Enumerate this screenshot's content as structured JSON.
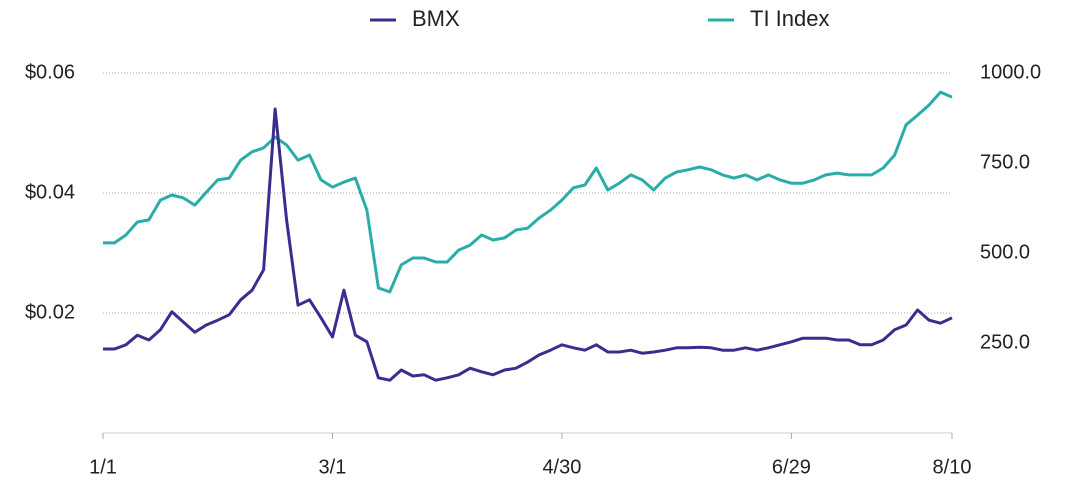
{
  "chart_data": {
    "type": "line",
    "categories": [
      "1/1",
      null,
      null,
      null,
      null,
      null,
      null,
      null,
      null,
      null,
      null,
      null,
      null,
      null,
      null,
      null,
      null,
      null,
      null,
      null,
      "3/1",
      null,
      null,
      null,
      null,
      null,
      null,
      null,
      null,
      null,
      null,
      null,
      null,
      null,
      null,
      null,
      null,
      null,
      null,
      null,
      "4/30",
      null,
      null,
      null,
      null,
      null,
      null,
      null,
      null,
      null,
      null,
      null,
      null,
      null,
      null,
      null,
      null,
      null,
      null,
      null,
      "6/29",
      null,
      null,
      null,
      null,
      null,
      null,
      null,
      null,
      null,
      null,
      null,
      null,
      null,
      "8/10"
    ],
    "series": [
      {
        "name": "BMX",
        "color": "#3b2d8f",
        "values": [
          0.014,
          0.014,
          0.0147,
          0.0163,
          0.0155,
          0.0172,
          0.0202,
          0.0185,
          0.0168,
          0.018,
          0.0188,
          0.0197,
          0.0222,
          0.0238,
          0.0272,
          0.054,
          0.0355,
          0.0213,
          0.0222,
          0.0192,
          0.016,
          0.0238,
          0.0163,
          0.0152,
          0.0092,
          0.0088,
          0.0105,
          0.0095,
          0.0097,
          0.0088,
          0.0092,
          0.0097,
          0.0108,
          0.0102,
          0.0097,
          0.0105,
          0.0108,
          0.0118,
          0.013,
          0.0138,
          0.0147,
          0.0142,
          0.0138,
          0.0147,
          0.0135,
          0.0135,
          0.0138,
          0.0133,
          0.0135,
          0.0138,
          0.0142,
          0.0142,
          0.0143,
          0.0142,
          0.0138,
          0.0138,
          0.0142,
          0.0138,
          0.0142,
          0.0147,
          0.0152,
          0.0158,
          0.0158,
          0.0158,
          0.0155,
          0.0155,
          0.0147,
          0.0147,
          0.0155,
          0.0172,
          0.018,
          0.0205,
          0.0188,
          0.0183,
          0.0192
        ]
      },
      {
        "name": "TI Index",
        "color": "#2aaca8",
        "axis": "y2",
        "values": [
          528,
          528,
          550,
          586,
          592,
          647,
          661,
          653,
          633,
          669,
          703,
          708,
          758,
          781,
          792,
          822,
          800,
          758,
          772,
          703,
          683,
          697,
          708,
          619,
          403,
          392,
          467,
          486,
          486,
          475,
          475,
          508,
          522,
          550,
          536,
          542,
          564,
          569,
          597,
          619,
          647,
          681,
          689,
          736,
          675,
          694,
          717,
          703,
          675,
          708,
          725,
          731,
          739,
          731,
          717,
          708,
          717,
          703,
          717,
          703,
          694,
          694,
          703,
          717,
          722,
          717,
          717,
          717,
          736,
          772,
          856,
          883,
          911,
          947,
          933
        ]
      }
    ],
    "ylim": [
      0,
      0.06
    ],
    "yticks": [
      {
        "value": 0.02,
        "label": "$0.02"
      },
      {
        "value": 0.04,
        "label": "$0.04"
      },
      {
        "value": 0.06,
        "label": "$0.06"
      }
    ],
    "y2lim": [
      0,
      1000
    ],
    "y2ticks": [
      {
        "value": 250,
        "label": "250.0"
      },
      {
        "value": 500,
        "label": "500.0"
      },
      {
        "value": 750,
        "label": "750.0"
      },
      {
        "value": 1000,
        "label": "1000.0"
      }
    ],
    "grid": true
  }
}
